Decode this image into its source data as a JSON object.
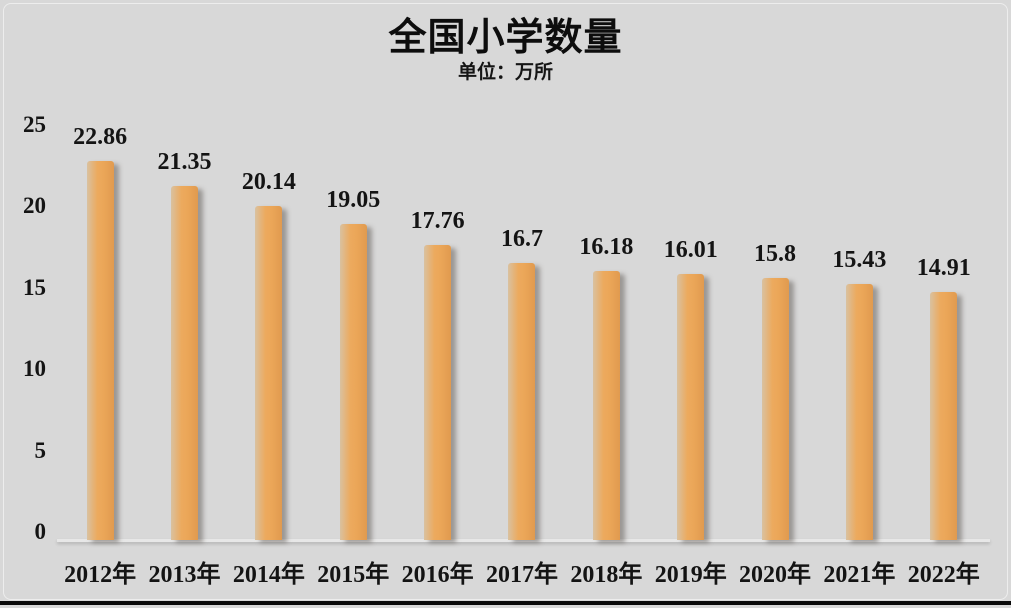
{
  "page": {
    "background_color": "#d8d8d8",
    "text_color": "#141414",
    "bar_color_main": "#ecaa5e",
    "bar_gradient": [
      "#d9c1a0",
      "#ecaa5e",
      "#e09a4f"
    ],
    "axis_line_color": "#e7e7e7",
    "bottom_rule_color": "#0a0a0a"
  },
  "chart_data": {
    "type": "bar",
    "title": "全国小学数量",
    "subtitle": "单位：万所",
    "categories": [
      "2012年",
      "2013年",
      "2014年",
      "2015年",
      "2016年",
      "2017年",
      "2018年",
      "2019年",
      "2020年",
      "2021年",
      "2022年"
    ],
    "values": [
      22.86,
      21.35,
      20.14,
      19.05,
      17.76,
      16.7,
      16.18,
      16.01,
      15.8,
      15.43,
      14.91
    ],
    "value_labels": [
      "22.86",
      "21.35",
      "20.14",
      "19.05",
      "17.76",
      "16.7",
      "16.18",
      "16.01",
      "15.8",
      "15.43",
      "14.91"
    ],
    "xlabel": "",
    "ylabel": "",
    "ylim": [
      0,
      25
    ],
    "yticks": [
      0,
      5,
      10,
      15,
      20,
      25
    ],
    "grid": false,
    "legend_position": "none",
    "data_labels_shown": true
  }
}
